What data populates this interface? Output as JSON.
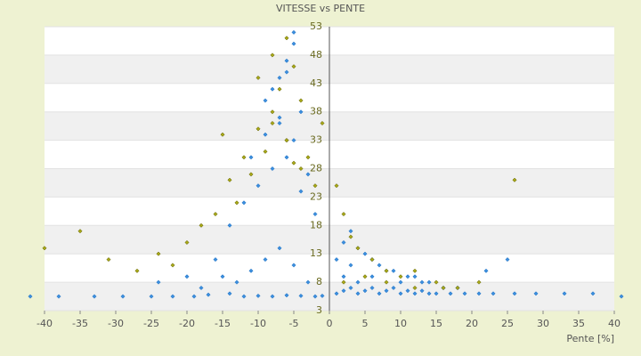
{
  "chart_data": {
    "type": "scatter",
    "title": "VITESSE vs PENTE",
    "x_label": "Pente [%]",
    "xlim": [
      -40,
      40
    ],
    "xticks": [
      -40,
      -35,
      -30,
      -25,
      -20,
      -15,
      -10,
      -5,
      0,
      5,
      10,
      15,
      20,
      25,
      30,
      35,
      40
    ],
    "ylim": [
      3,
      53
    ],
    "yticks": [
      3,
      8,
      13,
      18,
      23,
      28,
      33,
      38,
      43,
      48,
      53
    ],
    "grid": true,
    "series": [
      {
        "color": "#3b8ede",
        "x": [
          -42,
          -38,
          -33,
          -29,
          -25,
          -22,
          -19,
          -17,
          -14,
          -12,
          -10,
          -8,
          -6,
          -4,
          -2,
          -1,
          -15,
          -13,
          -11,
          -9,
          -7,
          -5,
          -3,
          -14,
          -12,
          -10,
          -8,
          -6,
          -4,
          -2,
          -11,
          -9,
          -7,
          -5,
          -3,
          -9,
          -7,
          -6,
          -5,
          -4,
          -8,
          -6,
          -5,
          -7,
          -24,
          -20,
          -18,
          -16,
          1,
          2,
          3,
          4,
          5,
          6,
          7,
          8,
          9,
          10,
          11,
          12,
          13,
          14,
          15,
          17,
          19,
          21,
          23,
          26,
          29,
          33,
          37,
          41,
          2,
          4,
          6,
          8,
          10,
          12,
          14,
          16,
          18,
          1,
          3,
          5,
          7,
          9,
          11,
          13,
          2,
          3,
          4,
          6,
          22,
          25
        ],
        "values": [
          5.5,
          5.5,
          5.5,
          5.5,
          5.5,
          5.5,
          5.5,
          5.8,
          6,
          5.5,
          5.6,
          5.5,
          5.7,
          5.6,
          5.5,
          5.6,
          9,
          8,
          10,
          12,
          14,
          11,
          8,
          18,
          22,
          25,
          28,
          30,
          24,
          20,
          30,
          34,
          37,
          33,
          27,
          40,
          44,
          47,
          50,
          38,
          42,
          45,
          52,
          36,
          8,
          9,
          7,
          12,
          6,
          6.5,
          7,
          6,
          6.5,
          7,
          6,
          6.5,
          7,
          6,
          6.5,
          6,
          6.5,
          6,
          6,
          6,
          6,
          6,
          6,
          6,
          6,
          6,
          6,
          5.5,
          9,
          8,
          9,
          10,
          8,
          9,
          8,
          7,
          7,
          12,
          11,
          13,
          11,
          10,
          9,
          8,
          15,
          17,
          14,
          12,
          10,
          12
        ]
      },
      {
        "color": "#a8a818",
        "x": [
          -40,
          -35,
          -31,
          -27,
          -24,
          -20,
          -16,
          -14,
          -12,
          -10,
          -8,
          -6,
          -4,
          -2,
          -1,
          -13,
          -11,
          -9,
          -7,
          -5,
          -3,
          -10,
          -8,
          -6,
          -4,
          -8,
          -6,
          -5,
          1,
          2,
          3,
          4,
          6,
          8,
          10,
          12,
          15,
          18,
          21,
          26,
          2,
          5,
          8,
          12,
          16,
          -18,
          -15,
          -22
        ],
        "values": [
          14,
          17,
          12,
          10,
          13,
          15,
          20,
          26,
          30,
          35,
          38,
          33,
          28,
          25,
          36,
          22,
          27,
          31,
          42,
          46,
          30,
          44,
          48,
          51,
          40,
          36,
          33,
          29,
          25,
          20,
          16,
          14,
          12,
          10,
          9,
          10,
          8,
          7,
          8,
          26,
          8,
          9,
          8,
          7,
          7,
          18,
          34,
          11
        ]
      }
    ]
  }
}
